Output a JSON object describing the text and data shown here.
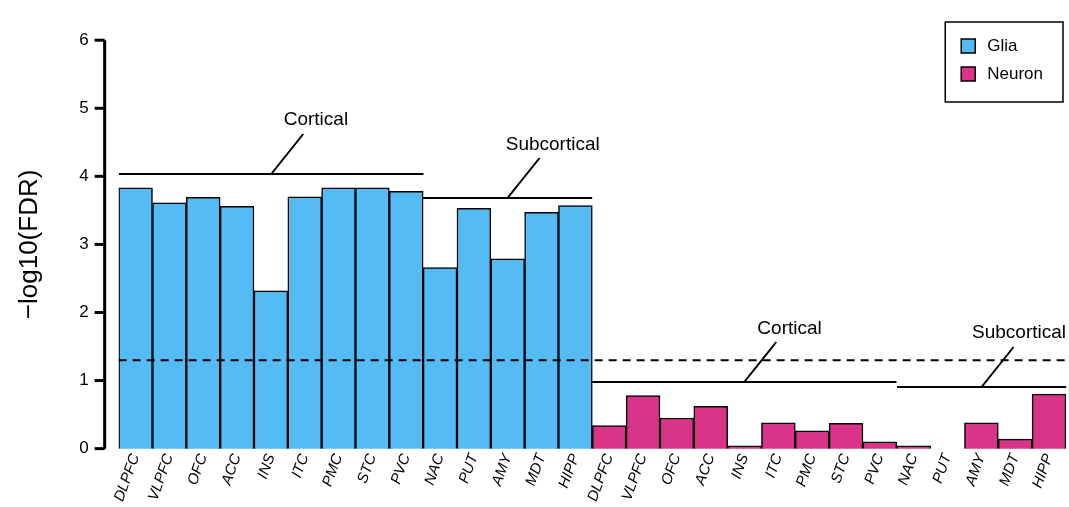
{
  "chart_data": {
    "type": "bar",
    "ylabel": "−log10(FDR)",
    "categories": [
      "DLPFC",
      "VLPFC",
      "OFC",
      "ACC",
      "INS",
      "ITC",
      "PMC",
      "STC",
      "PVC",
      "NAC",
      "PUT",
      "AMY",
      "MDT",
      "HIPP",
      "DLPFC",
      "VLPFC",
      "OFC",
      "ACC",
      "INS",
      "ITC",
      "PMC",
      "STC",
      "PVC",
      "NAC",
      "PUT",
      "AMY",
      "MDT",
      "HIPP"
    ],
    "series": [
      {
        "name": "Glia",
        "color": "#55bbf5",
        "values": [
          3.83,
          3.61,
          3.69,
          3.56,
          2.32,
          3.7,
          3.83,
          3.83,
          3.78,
          2.66,
          3.53,
          2.79,
          3.47,
          3.57,
          null,
          null,
          null,
          null,
          null,
          null,
          null,
          null,
          null,
          null,
          null,
          null,
          null,
          null
        ]
      },
      {
        "name": "Neuron",
        "color": "#d9348a",
        "values": [
          null,
          null,
          null,
          null,
          null,
          null,
          null,
          null,
          null,
          null,
          null,
          null,
          null,
          null,
          0.34,
          0.78,
          0.45,
          0.62,
          0.04,
          0.38,
          0.26,
          0.37,
          0.1,
          0.04,
          0,
          0.38,
          0.14,
          0.8
        ]
      }
    ],
    "stacked": true,
    "ylim": [
      0,
      6
    ],
    "yticks": [
      0,
      1,
      2,
      3,
      4,
      5,
      6
    ],
    "grid": false,
    "legend": "top right",
    "ref_lines": [
      {
        "axis": "y",
        "value": 1.3,
        "line_style": "dashed",
        "color": "#000000"
      }
    ],
    "annotations": [
      "Cortical",
      "Subcortical",
      "Cortical",
      "Subcortical"
    ]
  }
}
